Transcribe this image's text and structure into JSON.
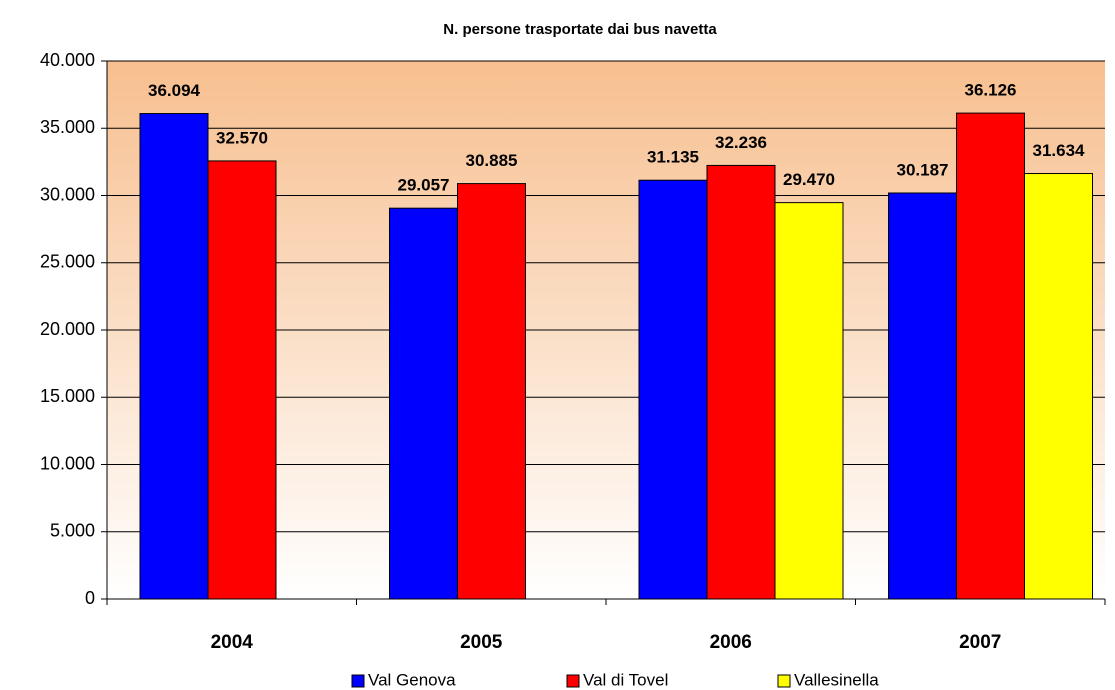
{
  "chart_data": {
    "type": "bar",
    "title": "N. persone trasportate dai bus navetta",
    "categories": [
      "2004",
      "2005",
      "2006",
      "2007"
    ],
    "series": [
      {
        "name": "Val Genova",
        "color": "#0000ff",
        "values": [
          36094,
          29057,
          31135,
          30187
        ],
        "value_labels": [
          "36.094",
          "29.057",
          "31.135",
          "30.187"
        ]
      },
      {
        "name": "Val di Tovel",
        "color": "#ff0000",
        "values": [
          32570,
          30885,
          32236,
          36126
        ],
        "value_labels": [
          "32.570",
          "30.885",
          "32.236",
          "36.126"
        ]
      },
      {
        "name": "Vallesinella",
        "color": "#ffff00",
        "values": [
          null,
          null,
          29470,
          31634
        ],
        "value_labels": [
          null,
          null,
          "29.470",
          "31.634"
        ]
      }
    ],
    "ylim": [
      0,
      40000
    ],
    "yticks": [
      0,
      {
        "value": 5000,
        "label": "5.000"
      },
      {
        "value": 10000,
        "label": "10.000"
      },
      {
        "value": 15000,
        "label": "15.000"
      },
      {
        "value": 20000,
        "label": "20.000"
      },
      {
        "value": 25000,
        "label": "25.000"
      },
      {
        "value": 30000,
        "label": "30.000"
      },
      {
        "value": 35000,
        "label": "35.000"
      },
      {
        "value": 40000,
        "label": "40.000"
      }
    ],
    "grid": true,
    "legend": "bottom"
  }
}
